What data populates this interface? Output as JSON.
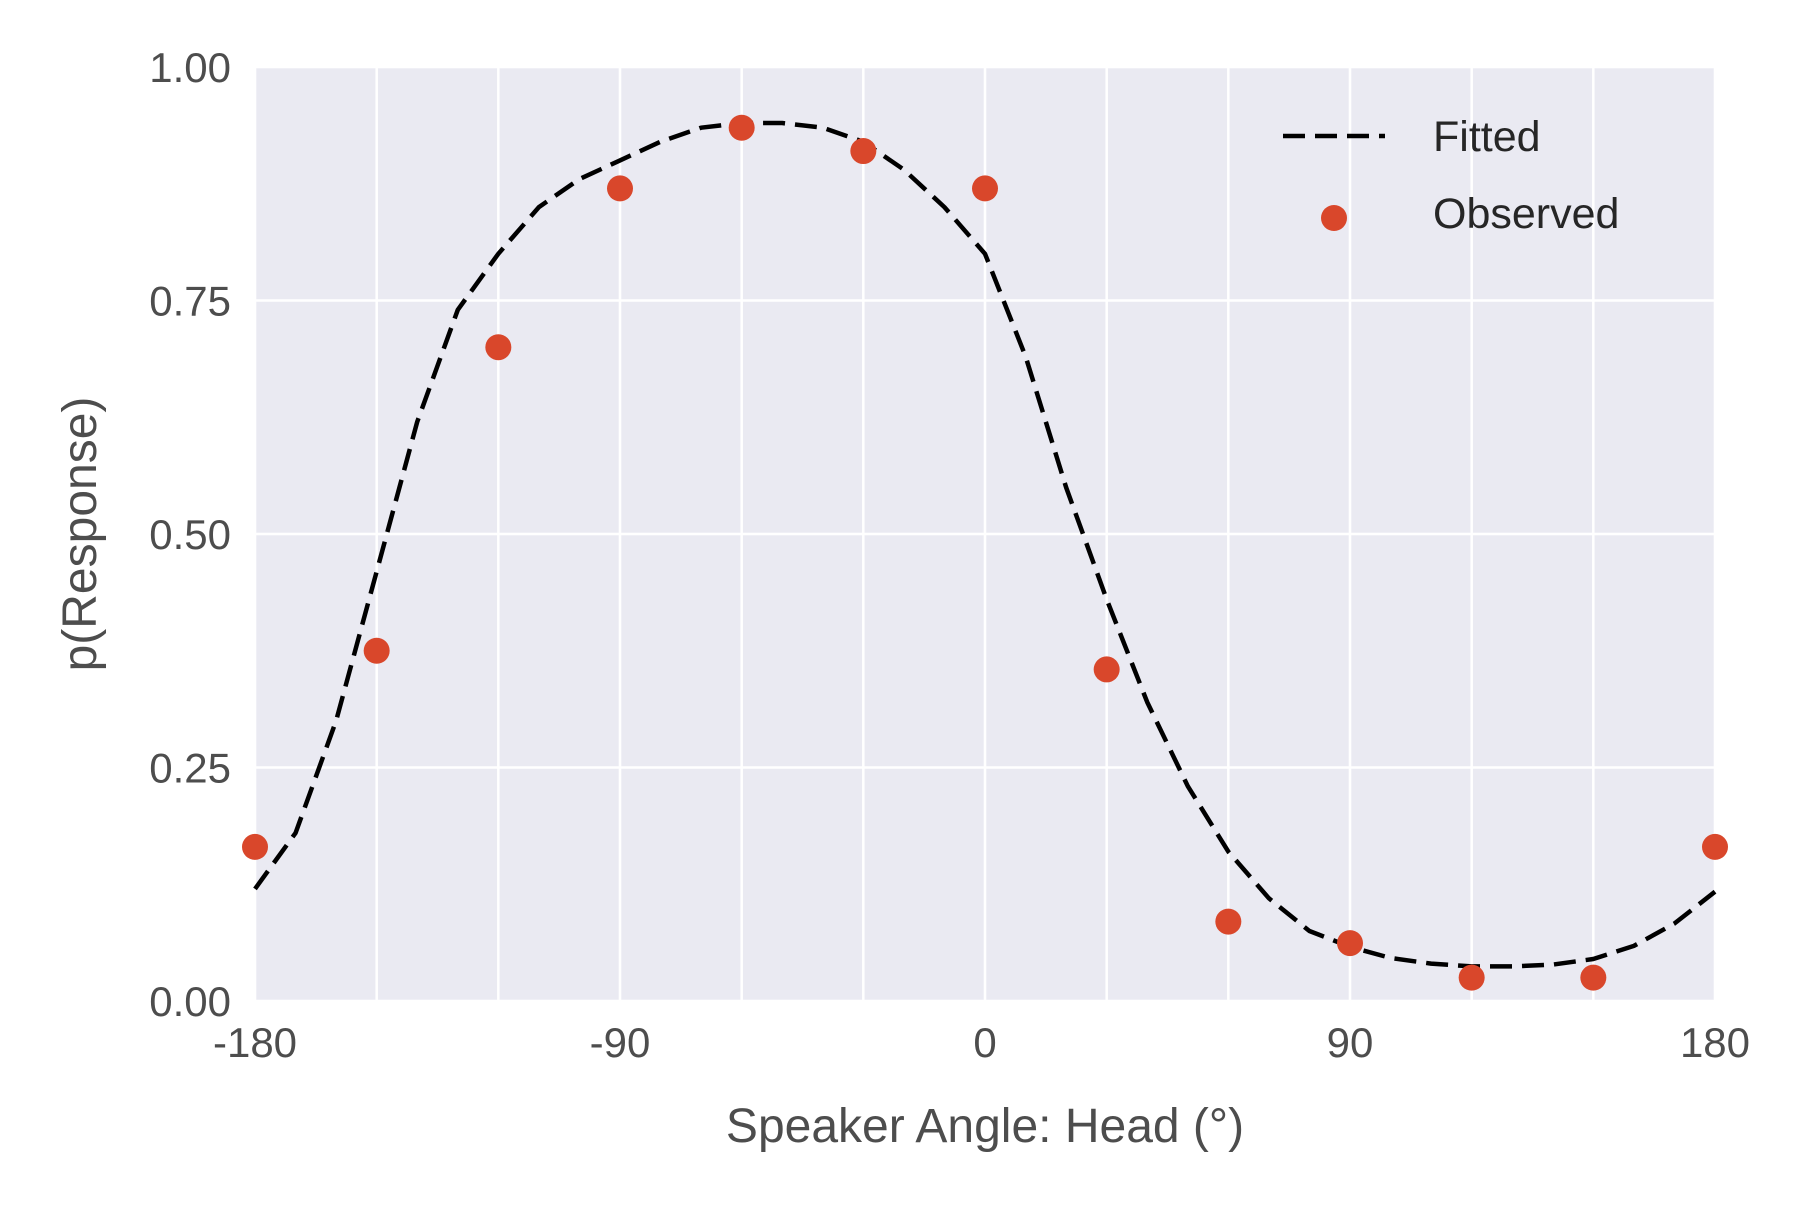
{
  "chart_data": {
    "type": "line",
    "xlabel": "Speaker Angle: Head (°)",
    "ylabel": "p(Response)",
    "xlim": [
      -180,
      180
    ],
    "ylim": [
      0,
      1
    ],
    "x_ticks": [
      -180,
      -90,
      0,
      90,
      180
    ],
    "x_tick_labels": [
      "-180",
      "-90",
      "0",
      "90",
      "180"
    ],
    "x_grid": [
      -180,
      -150,
      -120,
      -90,
      -60,
      -30,
      0,
      30,
      60,
      90,
      120,
      150,
      180
    ],
    "y_ticks": [
      0,
      0.25,
      0.5,
      0.75,
      1.0
    ],
    "y_tick_labels": [
      "0.00",
      "0.25",
      "0.50",
      "0.75",
      "1.00"
    ],
    "grid": true,
    "background": "#eaeaf2",
    "legend_position": "top-right",
    "series": [
      {
        "name": "Fitted",
        "kind": "line",
        "style": "dashed",
        "color": "#000000",
        "x": [
          -180,
          -170,
          -160,
          -150,
          -140,
          -130,
          -120,
          -110,
          -100,
          -90,
          -80,
          -70,
          -60,
          -50,
          -40,
          -30,
          -20,
          -10,
          0,
          10,
          20,
          30,
          40,
          50,
          60,
          70,
          80,
          90,
          100,
          110,
          120,
          130,
          140,
          150,
          160,
          170,
          180
        ],
        "y": [
          0.12,
          0.18,
          0.3,
          0.46,
          0.62,
          0.74,
          0.8,
          0.85,
          0.88,
          0.9,
          0.92,
          0.935,
          0.94,
          0.94,
          0.935,
          0.92,
          0.89,
          0.85,
          0.8,
          0.69,
          0.55,
          0.43,
          0.32,
          0.23,
          0.16,
          0.11,
          0.075,
          0.058,
          0.046,
          0.04,
          0.037,
          0.037,
          0.039,
          0.045,
          0.059,
          0.083,
          0.117
        ]
      },
      {
        "name": "Observed",
        "kind": "scatter",
        "color": "#d9472b",
        "x": [
          -180,
          -150,
          -120,
          -90,
          -60,
          -30,
          0,
          30,
          60,
          90,
          120,
          150,
          180
        ],
        "y": [
          0.165,
          0.375,
          0.7,
          0.87,
          0.935,
          0.91,
          0.87,
          0.355,
          0.085,
          0.062,
          0.025,
          0.025,
          0.165
        ]
      }
    ]
  }
}
